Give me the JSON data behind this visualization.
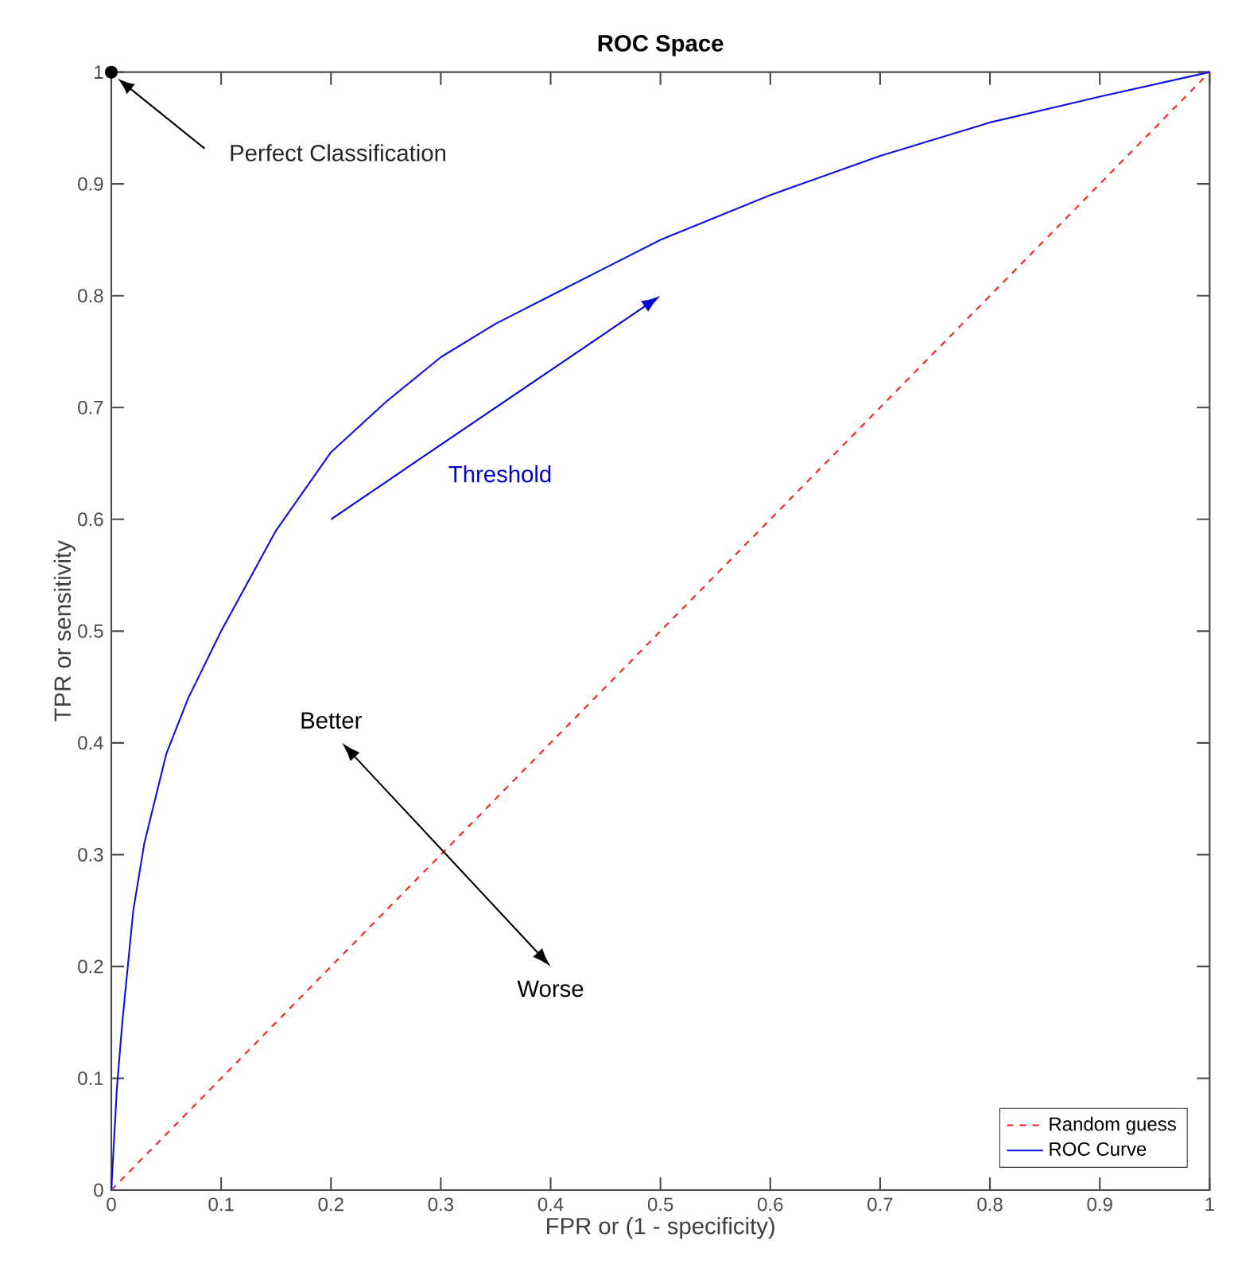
{
  "chart_data": {
    "type": "line",
    "title": "ROC Space",
    "xlabel": "FPR or (1 - specificity)",
    "ylabel": "TPR or sensitivity",
    "xlim": [
      0,
      1
    ],
    "ylim": [
      0,
      1
    ],
    "xticks": [
      0,
      0.1,
      0.2,
      0.3,
      0.4,
      0.5,
      0.6,
      0.7,
      0.8,
      0.9,
      1
    ],
    "yticks": [
      0,
      0.1,
      0.2,
      0.3,
      0.4,
      0.5,
      0.6,
      0.7,
      0.8,
      0.9,
      1
    ],
    "grid": false,
    "legend": "bottom right",
    "series": [
      {
        "name": "Random guess",
        "color": "#ff2020",
        "line_style": "dashed",
        "x": [
          0,
          1
        ],
        "values": [
          0,
          1
        ]
      },
      {
        "name": "ROC Curve",
        "color": "#1010e0",
        "line_style": "solid",
        "x": [
          0,
          0.005,
          0.01,
          0.02,
          0.03,
          0.05,
          0.07,
          0.1,
          0.15,
          0.2,
          0.25,
          0.3,
          0.35,
          0.4,
          0.5,
          0.6,
          0.7,
          0.8,
          0.9,
          1
        ],
        "values": [
          0,
          0.09,
          0.15,
          0.25,
          0.31,
          0.39,
          0.44,
          0.5,
          0.59,
          0.66,
          0.705,
          0.745,
          0.775,
          0.8,
          0.85,
          0.89,
          0.925,
          0.955,
          0.978,
          1
        ]
      }
    ],
    "annotations": [
      "Perfect Classification",
      "Threshold",
      "Better",
      "Worse"
    ]
  }
}
